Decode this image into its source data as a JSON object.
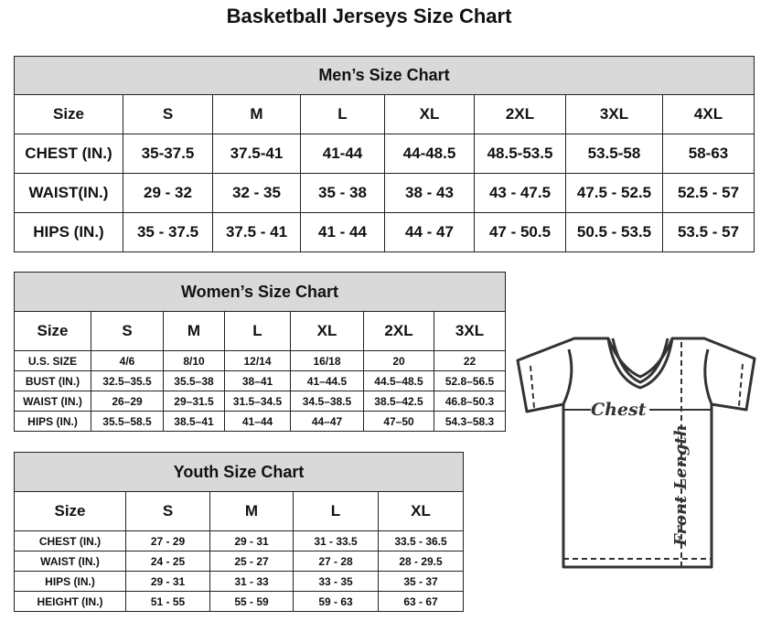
{
  "title": "Basketball Jerseys Size Chart",
  "men": {
    "caption": "Men’s Size Chart",
    "header": [
      "Size",
      "S",
      "M",
      "L",
      "XL",
      "2XL",
      "3XL",
      "4XL"
    ],
    "rows": [
      [
        "CHEST (IN.)",
        "35-37.5",
        "37.5-41",
        "41-44",
        "44-48.5",
        "48.5-53.5",
        "53.5-58",
        "58-63"
      ],
      [
        "WAIST(IN.)",
        "29 - 32",
        "32 - 35",
        "35 - 38",
        "38 - 43",
        "43 - 47.5",
        "47.5 - 52.5",
        "52.5 - 57"
      ],
      [
        "HIPS (IN.)",
        "35 - 37.5",
        "37.5 - 41",
        "41 - 44",
        "44 - 47",
        "47 - 50.5",
        "50.5 - 53.5",
        "53.5 - 57"
      ]
    ]
  },
  "women": {
    "caption": "Women’s Size Chart",
    "header": [
      "Size",
      "S",
      "M",
      "L",
      "XL",
      "2XL",
      "3XL"
    ],
    "rows": [
      [
        "U.S. SIZE",
        "4/6",
        "8/10",
        "12/14",
        "16/18",
        "20",
        "22"
      ],
      [
        "BUST (IN.)",
        "32.5–35.5",
        "35.5–38",
        "38–41",
        "41–44.5",
        "44.5–48.5",
        "52.8–56.5"
      ],
      [
        "WAIST (IN.)",
        "26–29",
        "29–31.5",
        "31.5–34.5",
        "34.5–38.5",
        "38.5–42.5",
        "46.8–50.3"
      ],
      [
        "HIPS (IN.)",
        "35.5–58.5",
        "38.5–41",
        "41–44",
        "44–47",
        "47–50",
        "54.3–58.3"
      ]
    ]
  },
  "youth": {
    "caption": "Youth Size Chart",
    "header": [
      "Size",
      "S",
      "M",
      "L",
      "XL"
    ],
    "rows": [
      [
        "CHEST (IN.)",
        "27 - 29",
        "29 - 31",
        "31 - 33.5",
        "33.5 - 36.5"
      ],
      [
        "WAIST (IN.)",
        "24 - 25",
        "25 - 27",
        "27 - 28",
        "28 - 29.5"
      ],
      [
        "HIPS (IN.)",
        "29 - 31",
        "31 - 33",
        "33 - 35",
        "35 - 37"
      ],
      [
        "HEIGHT (IN.)",
        "51 - 55",
        "55 - 59",
        "59 - 63",
        "63 - 67"
      ]
    ]
  },
  "diagram": {
    "chest_label": "Chest",
    "length_label": "Front Length"
  }
}
